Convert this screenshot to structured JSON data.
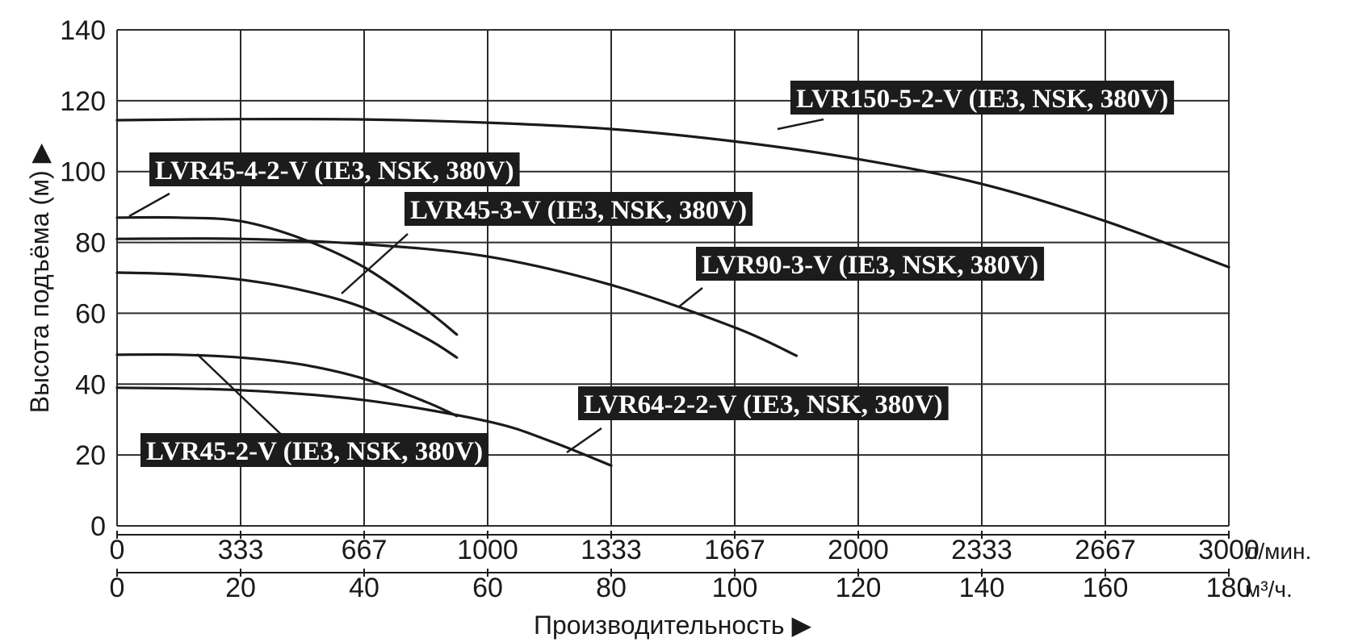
{
  "chart_data": {
    "type": "line",
    "ylabel": "Высота подъёма (м) ▶",
    "xlabel": "Производительность ▶",
    "ylim": [
      0,
      140
    ],
    "y_ticks": [
      "0",
      "20",
      "40",
      "60",
      "80",
      "100",
      "120",
      "140"
    ],
    "x_axes": [
      {
        "unit": "л/мин.",
        "ticks": [
          "0",
          "333",
          "667",
          "1000",
          "1333",
          "1667",
          "2000",
          "2333",
          "2667",
          "3000"
        ]
      },
      {
        "unit": "м³/ч.",
        "ticks": [
          "0",
          "20",
          "40",
          "60",
          "80",
          "100",
          "120",
          "140",
          "160",
          "180"
        ]
      }
    ],
    "xlim_m3h": [
      0,
      180
    ],
    "grid": true,
    "series": [
      {
        "name": "LVR150-5-2-V (IE3, NSK, 380V)",
        "x": [
          0,
          20,
          40,
          60,
          80,
          100,
          120,
          140,
          160,
          180
        ],
        "y": [
          114.5,
          114.8,
          114.7,
          113.8,
          112,
          108.5,
          103.5,
          96.5,
          86,
          73
        ]
      },
      {
        "name": "LVR45-4-2-V (IE3, NSK, 380V)",
        "x": [
          0,
          10,
          20,
          30,
          40,
          50,
          55
        ],
        "y": [
          87,
          87,
          86,
          81,
          73,
          61,
          54
        ]
      },
      {
        "name": "LVR45-3-V (IE3, NSK, 380V)",
        "x": [
          0,
          10,
          20,
          30,
          40,
          50,
          55
        ],
        "y": [
          71.5,
          71,
          69.5,
          66.5,
          61.5,
          53,
          47.5
        ]
      },
      {
        "name": "LVR90-3-V (IE3, NSK, 380V)",
        "x": [
          0,
          20,
          40,
          60,
          80,
          100,
          110
        ],
        "y": [
          81,
          81,
          79.5,
          76,
          68,
          56,
          48
        ]
      },
      {
        "name": "LVR45-2-V (IE3, NSK, 380V)",
        "x": [
          0,
          10,
          20,
          30,
          40,
          50,
          55
        ],
        "y": [
          48.3,
          48.3,
          47.5,
          45.5,
          41.5,
          35,
          31
        ]
      },
      {
        "name": "LVR64-2-2-V (IE3, NSK, 380V)",
        "x": [
          0,
          20,
          40,
          60,
          70,
          80
        ],
        "y": [
          39,
          38.3,
          35.5,
          29.5,
          24,
          17
        ]
      }
    ],
    "labels": [
      {
        "text": "LVR150-5-2-V (IE3, NSK, 380V)",
        "series": 0
      },
      {
        "text": "LVR45-4-2-V (IE3, NSK, 380V)",
        "series": 1
      },
      {
        "text": "LVR45-3-V (IE3, NSK, 380V)",
        "series": 2
      },
      {
        "text": "LVR90-3-V (IE3, NSK, 380V)",
        "series": 3
      },
      {
        "text": "LVR45-2-V (IE3, NSK, 380V)",
        "series": 4
      },
      {
        "text": "LVR64-2-2-V (IE3, NSK, 380V)",
        "series": 5
      }
    ],
    "colors": {
      "line": "#1a1a1a",
      "grid": "#2b2b2b",
      "label_bg": "#1c1c1c",
      "label_text": "#ffffff"
    }
  }
}
